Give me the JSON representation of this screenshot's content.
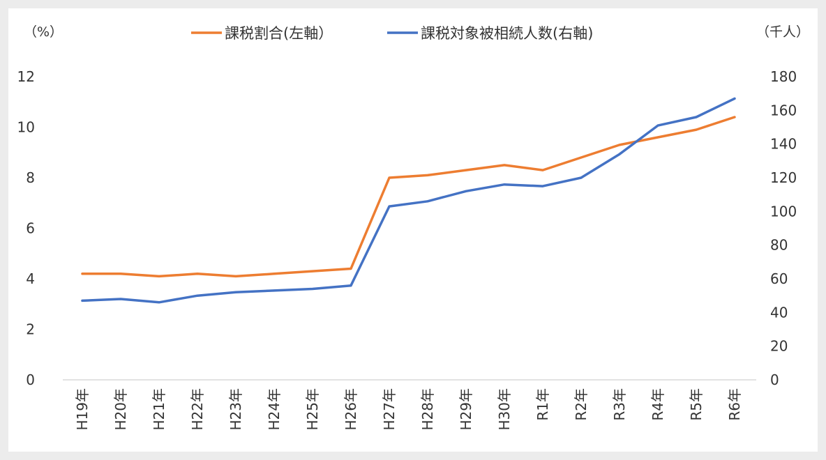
{
  "chart_data": {
    "type": "line",
    "title": "",
    "x": [
      "H19年",
      "H20年",
      "H21年",
      "H22年",
      "H23年",
      "H24年",
      "H25年",
      "H26年",
      "H27年",
      "H28年",
      "H29年",
      "H30年",
      "R1年",
      "R2年",
      "R3年",
      "R4年",
      "R5年",
      "R6年"
    ],
    "series": [
      {
        "name": "課税割合(左軸）",
        "axis": "left",
        "color": "#ed7d31",
        "values": [
          4.2,
          4.2,
          4.1,
          4.2,
          4.1,
          4.2,
          4.3,
          4.4,
          8.0,
          8.1,
          8.3,
          8.5,
          8.3,
          8.8,
          9.3,
          9.6,
          9.9,
          10.4
        ]
      },
      {
        "name": "課税対象被相続人数(右軸)",
        "axis": "right",
        "color": "#4472c4",
        "values": [
          47,
          48,
          46,
          50,
          52,
          53,
          54,
          56,
          103,
          106,
          112,
          116,
          115,
          120,
          134,
          151,
          156,
          167
        ]
      }
    ],
    "left_axis": {
      "unit": "（%）",
      "ylim": [
        0,
        12
      ],
      "ticks": [
        0,
        2,
        4,
        6,
        8,
        10,
        12
      ]
    },
    "right_axis": {
      "unit": "（千人）",
      "ylim": [
        0,
        180
      ],
      "ticks": [
        0,
        20,
        40,
        60,
        80,
        100,
        120,
        140,
        160,
        180
      ]
    },
    "grid": false,
    "legend_position": "top"
  }
}
